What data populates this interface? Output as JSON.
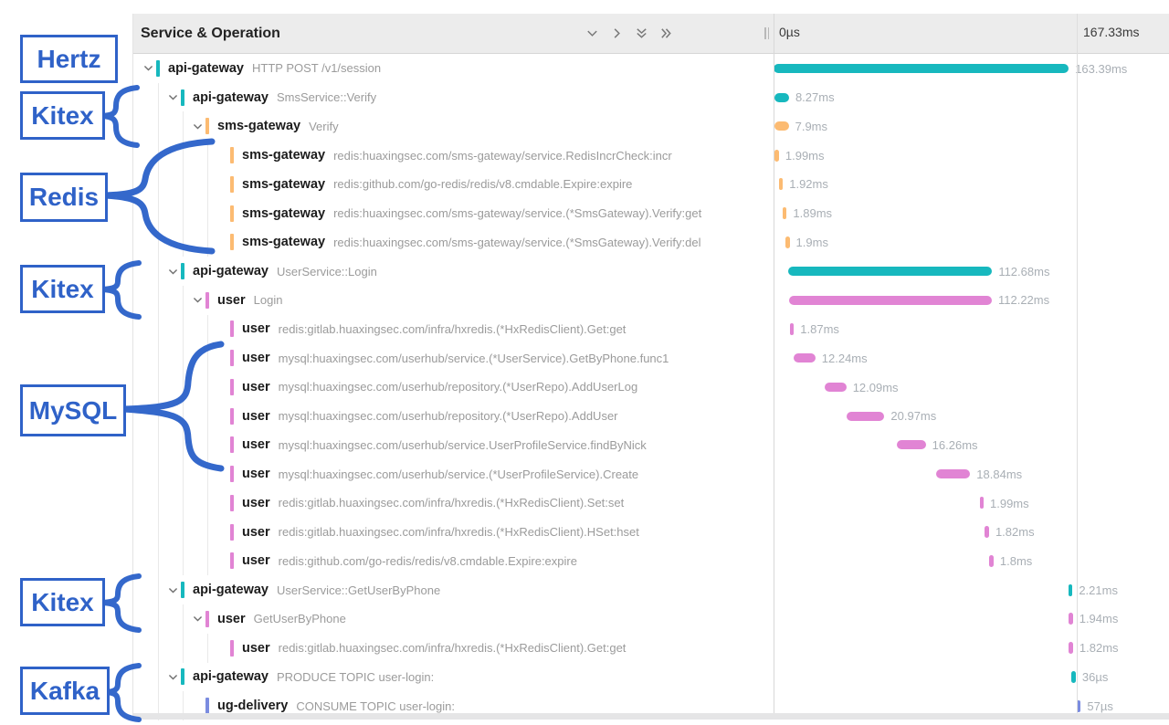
{
  "annotations": {
    "color": "#2f62c8",
    "items": [
      {
        "label": "Hertz"
      },
      {
        "label": "Kitex"
      },
      {
        "label": "Redis"
      },
      {
        "label": "Kitex"
      },
      {
        "label": "MySQL"
      },
      {
        "label": "Kitex"
      },
      {
        "label": "Kafka"
      }
    ]
  },
  "header": {
    "title": "Service & Operation",
    "icons": [
      "chevron-down",
      "chevron-right",
      "double-chevron-down",
      "double-chevron-right"
    ],
    "timeline_start_label": "0µs",
    "timeline_end_label": "167.33ms"
  },
  "colors": {
    "teal": "#17b8be",
    "orange": "#fcbb72",
    "pink": "#e184d4",
    "blue": "#7b8ce0",
    "annotation_blue": "#2f62c8"
  },
  "trace": {
    "total_ms": 167.33,
    "rows": [
      {
        "service": "api-gateway",
        "operation": "HTTP POST /v1/session",
        "depth": 0,
        "color": "teal",
        "start_ms": 0,
        "duration_ms": 163.39,
        "duration_label": "163.39ms",
        "has_children": true
      },
      {
        "service": "api-gateway",
        "operation": "SmsService::Verify",
        "depth": 1,
        "color": "teal",
        "start_ms": 0.3,
        "duration_ms": 8.27,
        "duration_label": "8.27ms",
        "has_children": true
      },
      {
        "service": "sms-gateway",
        "operation": "Verify",
        "depth": 2,
        "color": "orange",
        "start_ms": 0.5,
        "duration_ms": 7.9,
        "duration_label": "7.9ms",
        "has_children": true
      },
      {
        "service": "sms-gateway",
        "operation": "redis:huaxingsec.com/sms-gateway/service.RedisIncrCheck:incr",
        "depth": 3,
        "color": "orange",
        "start_ms": 0.7,
        "duration_ms": 1.99,
        "duration_label": "1.99ms",
        "has_children": false
      },
      {
        "service": "sms-gateway",
        "operation": "redis:github.com/go-redis/redis/v8.cmdable.Expire:expire",
        "depth": 3,
        "color": "orange",
        "start_ms": 2.9,
        "duration_ms": 1.92,
        "duration_label": "1.92ms",
        "has_children": false
      },
      {
        "service": "sms-gateway",
        "operation": "redis:huaxingsec.com/sms-gateway/service.(*SmsGateway).Verify:get",
        "depth": 3,
        "color": "orange",
        "start_ms": 5.0,
        "duration_ms": 1.89,
        "duration_label": "1.89ms",
        "has_children": false
      },
      {
        "service": "sms-gateway",
        "operation": "redis:huaxingsec.com/sms-gateway/service.(*SmsGateway).Verify:del",
        "depth": 3,
        "color": "orange",
        "start_ms": 6.6,
        "duration_ms": 1.9,
        "duration_label": "1.9ms",
        "has_children": false
      },
      {
        "service": "api-gateway",
        "operation": "UserService::Login",
        "depth": 1,
        "color": "teal",
        "start_ms": 8.3,
        "duration_ms": 112.68,
        "duration_label": "112.68ms",
        "has_children": true
      },
      {
        "service": "user",
        "operation": "Login",
        "depth": 2,
        "color": "pink",
        "start_ms": 8.6,
        "duration_ms": 112.22,
        "duration_label": "112.22ms",
        "has_children": true
      },
      {
        "service": "user",
        "operation": "redis:gitlab.huaxingsec.com/infra/hxredis.(*HxRedisClient).Get:get",
        "depth": 3,
        "color": "pink",
        "start_ms": 9.0,
        "duration_ms": 1.87,
        "duration_label": "1.87ms",
        "has_children": false
      },
      {
        "service": "user",
        "operation": "mysql:huaxingsec.com/userhub/service.(*UserService).GetByPhone.func1",
        "depth": 3,
        "color": "pink",
        "start_ms": 10.9,
        "duration_ms": 12.24,
        "duration_label": "12.24ms",
        "has_children": false
      },
      {
        "service": "user",
        "operation": "mysql:huaxingsec.com/userhub/repository.(*UserRepo).AddUserLog",
        "depth": 3,
        "color": "pink",
        "start_ms": 28.2,
        "duration_ms": 12.09,
        "duration_label": "12.09ms",
        "has_children": false
      },
      {
        "service": "user",
        "operation": "mysql:huaxingsec.com/userhub/repository.(*UserRepo).AddUser",
        "depth": 3,
        "color": "pink",
        "start_ms": 40.4,
        "duration_ms": 20.97,
        "duration_label": "20.97ms",
        "has_children": false
      },
      {
        "service": "user",
        "operation": "mysql:huaxingsec.com/userhub/service.UserProfileService.findByNick",
        "depth": 3,
        "color": "pink",
        "start_ms": 68.0,
        "duration_ms": 16.26,
        "duration_label": "16.26ms",
        "has_children": false
      },
      {
        "service": "user",
        "operation": "mysql:huaxingsec.com/userhub/service.(*UserProfileService).Create",
        "depth": 3,
        "color": "pink",
        "start_ms": 90.0,
        "duration_ms": 18.84,
        "duration_label": "18.84ms",
        "has_children": false
      },
      {
        "service": "user",
        "operation": "redis:gitlab.huaxingsec.com/infra/hxredis.(*HxRedisClient).Set:set",
        "depth": 3,
        "color": "pink",
        "start_ms": 114.0,
        "duration_ms": 1.99,
        "duration_label": "1.99ms",
        "has_children": false
      },
      {
        "service": "user",
        "operation": "redis:gitlab.huaxingsec.com/infra/hxredis.(*HxRedisClient).HSet:hset",
        "depth": 3,
        "color": "pink",
        "start_ms": 117.0,
        "duration_ms": 1.82,
        "duration_label": "1.82ms",
        "has_children": false
      },
      {
        "service": "user",
        "operation": "redis:github.com/go-redis/redis/v8.cmdable.Expire:expire",
        "depth": 3,
        "color": "pink",
        "start_ms": 119.5,
        "duration_ms": 1.8,
        "duration_label": "1.8ms",
        "has_children": false
      },
      {
        "service": "api-gateway",
        "operation": "UserService::GetUserByPhone",
        "depth": 1,
        "color": "teal",
        "start_ms": 163.2,
        "duration_ms": 2.21,
        "duration_label": "2.21ms",
        "has_children": true
      },
      {
        "service": "user",
        "operation": "GetUserByPhone",
        "depth": 2,
        "color": "pink",
        "start_ms": 163.4,
        "duration_ms": 1.94,
        "duration_label": "1.94ms",
        "has_children": true
      },
      {
        "service": "user",
        "operation": "redis:gitlab.huaxingsec.com/infra/hxredis.(*HxRedisClient).Get:get",
        "depth": 3,
        "color": "pink",
        "start_ms": 163.5,
        "duration_ms": 1.82,
        "duration_label": "1.82ms",
        "has_children": false
      },
      {
        "service": "api-gateway",
        "operation": "PRODUCE TOPIC user-login:",
        "depth": 1,
        "color": "teal",
        "start_ms": 165.0,
        "duration_ms": 0.036,
        "duration_label": "36µs",
        "has_children": true
      },
      {
        "service": "ug-delivery",
        "operation": "CONSUME TOPIC user-login:",
        "depth": 2,
        "color": "blue",
        "start_ms": 167.8,
        "duration_ms": 0.057,
        "duration_label": "57µs",
        "has_children": false
      }
    ]
  }
}
